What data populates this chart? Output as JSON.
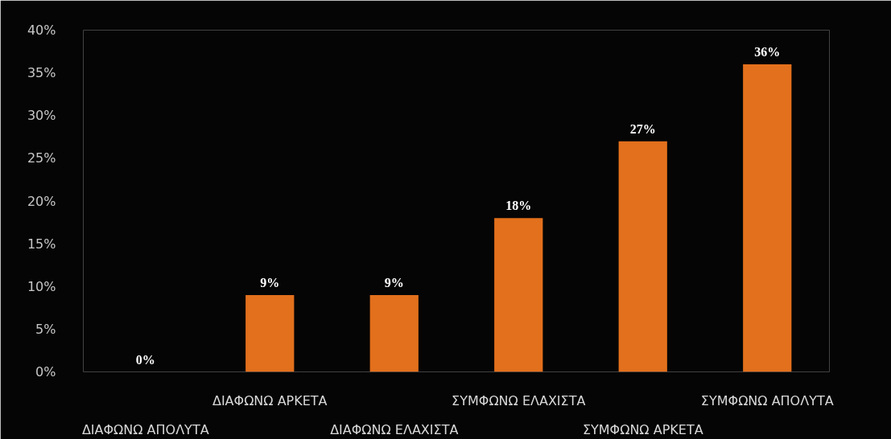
{
  "chart_data": {
    "type": "bar",
    "categories": [
      "ΔΙΑΦΩΝΩ ΑΠΟΛΥΤΑ",
      "ΔΙΑΦΩΝΩ ΑΡΚΕΤΑ",
      "ΔΙΑΦΩΝΩ ΕΛΑΧΙΣΤΑ",
      "ΣΥΜΦΩΝΩ ΕΛΑΧΙΣΤΑ",
      "ΣΥΜΦΩΝΩ ΑΡΚΕΤΑ",
      "ΣΥΜΦΩΝΩ ΑΠΟΛΥΤΑ"
    ],
    "values": [
      0,
      9,
      9,
      18,
      27,
      36
    ],
    "value_labels": [
      "0%",
      "9%",
      "9%",
      "18%",
      "27%",
      "36%"
    ],
    "color": "#e3701c",
    "ylim": [
      0,
      40
    ],
    "yticks": [
      {
        "value": 0,
        "label": "0%"
      },
      {
        "value": 5,
        "label": "5%"
      },
      {
        "value": 10,
        "label": "10%"
      },
      {
        "value": 15,
        "label": "15%"
      },
      {
        "value": 20,
        "label": "20%"
      },
      {
        "value": 25,
        "label": "25%"
      },
      {
        "value": 30,
        "label": "30%"
      },
      {
        "value": 35,
        "label": "35%"
      },
      {
        "value": 40,
        "label": "40%"
      }
    ]
  }
}
